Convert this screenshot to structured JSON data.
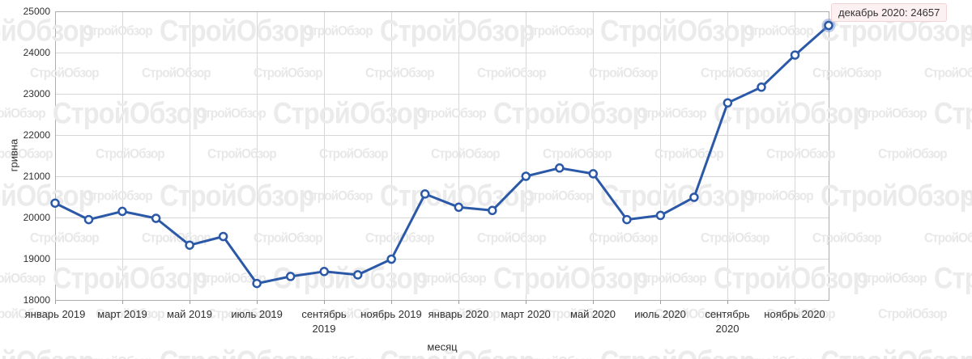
{
  "watermark": {
    "text": "СтройОбзор"
  },
  "tooltip": {
    "label": "декабрь 2020: 24657"
  },
  "axes": {
    "y_title": "гривна",
    "x_title": "месяц",
    "y_ticks": [
      "25000",
      "24000",
      "23000",
      "22000",
      "21000",
      "20000",
      "19000",
      "18000"
    ],
    "x_ticks": [
      "январь 2019",
      "март 2019",
      "май 2019",
      "июль 2019",
      "сентябрь 2019",
      "ноябрь 2019",
      "январь 2020",
      "март 2020",
      "май 2020",
      "июль 2020",
      "сентябрь 2020",
      "ноябрь 2020"
    ]
  },
  "chart_data": {
    "type": "line",
    "x": [
      "январь 2019",
      "февраль 2019",
      "март 2019",
      "апрель 2019",
      "май 2019",
      "июнь 2019",
      "июль 2019",
      "август 2019",
      "сентябрь 2019",
      "октябрь 2019",
      "ноябрь 2019",
      "декабрь 2019",
      "январь 2020",
      "февраль 2020",
      "март 2020",
      "апрель 2020",
      "май 2020",
      "июнь 2020",
      "июль 2020",
      "август 2020",
      "сентябрь 2020",
      "октябрь 2020",
      "ноябрь 2020",
      "декабрь 2020"
    ],
    "values": [
      20350,
      19950,
      20150,
      19980,
      19330,
      19540,
      18400,
      18570,
      18690,
      18610,
      18990,
      20570,
      20250,
      20170,
      21000,
      21200,
      21060,
      19950,
      20050,
      20490,
      22780,
      23160,
      23940,
      24657
    ],
    "title": "",
    "xlabel": "месяц",
    "ylabel": "гривна",
    "ylim": [
      18000,
      25000
    ],
    "grid": true,
    "line_color": "#2b59a8",
    "marker_fill": "#ffffff",
    "halo_color": "#7a97d0",
    "highlight": {
      "index": 23,
      "label": "декабрь 2020: 24657"
    }
  }
}
